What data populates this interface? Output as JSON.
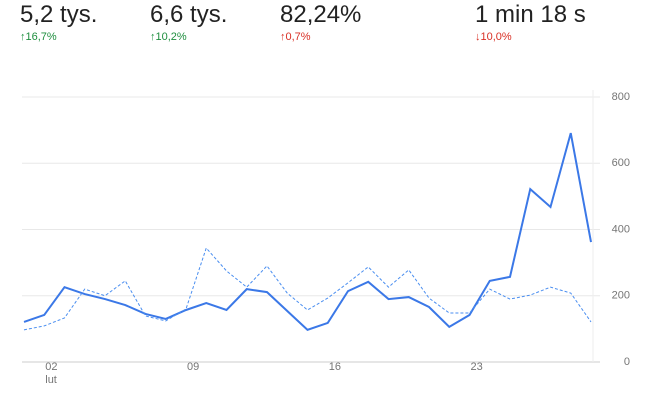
{
  "metrics": [
    {
      "value": "5,2 tys.",
      "change": "16,7%",
      "trend": "up"
    },
    {
      "value": "6,6 tys.",
      "change": "10,2%",
      "trend": "up"
    },
    {
      "value": "82,24%",
      "change": "0,7%",
      "trend": "up-bad"
    },
    {
      "value": "1 min 18 s",
      "change": "10,0%",
      "trend": "down-bad"
    }
  ],
  "chart_data": {
    "type": "line",
    "categories": [
      null,
      "02",
      null,
      null,
      null,
      null,
      null,
      null,
      "09",
      null,
      null,
      null,
      null,
      null,
      null,
      "16",
      null,
      null,
      null,
      null,
      null,
      null,
      "23",
      null,
      null,
      null,
      null,
      null,
      null
    ],
    "month_label": "lut",
    "series": [
      {
        "color": "#3b78e7",
        "style": "solid",
        "values": [
          121,
          142,
          226,
          205,
          190,
          172,
          145,
          130,
          157,
          178,
          157,
          220,
          211,
          154,
          97,
          118,
          214,
          242,
          190,
          196,
          166,
          106,
          142,
          245,
          257,
          522,
          468,
          691,
          362
        ]
      },
      {
        "color": "#4a8ef0",
        "style": "dashed",
        "values": [
          97,
          109,
          133,
          220,
          200,
          245,
          139,
          124,
          160,
          344,
          275,
          226,
          290,
          208,
          157,
          193,
          239,
          287,
          226,
          278,
          193,
          148,
          148,
          220,
          190,
          202,
          226,
          208,
          121
        ]
      }
    ],
    "ylim": [
      0,
      800
    ],
    "yticks": [
      0,
      200,
      400,
      600,
      800
    ],
    "grid": true
  }
}
